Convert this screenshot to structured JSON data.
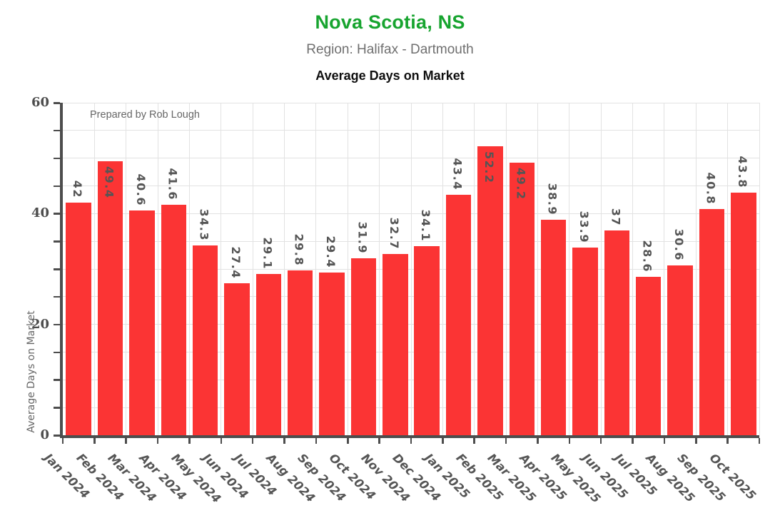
{
  "header": {
    "title": "Nova Scotia, NS",
    "subtitle": "Region: Halifax - Dartmouth",
    "chart_title": "Average Days on Market",
    "title_color": "#17a42f"
  },
  "annotation": "Prepared by Rob Lough",
  "chart_data": {
    "type": "bar",
    "title": "Average Days on Market",
    "categories": [
      "Jan 2024",
      "Feb 2024",
      "Mar 2024",
      "Apr 2024",
      "May 2024",
      "Jun 2024",
      "Jul 2024",
      "Aug 2024",
      "Sep 2024",
      "Oct 2024",
      "Nov 2024",
      "Dec 2024",
      "Jan 2025",
      "Feb 2025",
      "Mar 2025",
      "Apr 2025",
      "May 2025",
      "Jun 2025",
      "Jul 2025",
      "Aug 2025",
      "Sep 2025",
      "Oct 2025"
    ],
    "values": [
      42,
      49.4,
      40.6,
      41.6,
      34.3,
      27.4,
      29.1,
      29.8,
      29.4,
      31.9,
      32.7,
      34.1,
      43.4,
      52.2,
      49.2,
      38.9,
      33.9,
      37,
      28.6,
      30.6,
      40.8,
      43.8
    ],
    "value_labels": [
      "42",
      "49.4",
      "40.6",
      "41.6",
      "34.3",
      "27.4",
      "29.1",
      "29.8",
      "29.4",
      "31.9",
      "32.7",
      "34.1",
      "43.4",
      "52.2",
      "49.2",
      "38.9",
      "33.9",
      "37",
      "28.6",
      "30.6",
      "40.8",
      "43.8"
    ],
    "xlabel": "",
    "ylabel": "Average Days on Market",
    "ylim": [
      0,
      60
    ],
    "ytick_labeled": [
      0,
      20,
      40,
      60
    ],
    "tick_step": 5,
    "grid": true,
    "legend": "none",
    "bar_color": "#fb3434",
    "value_label_color": "#555555",
    "inside_label_threshold": 45
  }
}
